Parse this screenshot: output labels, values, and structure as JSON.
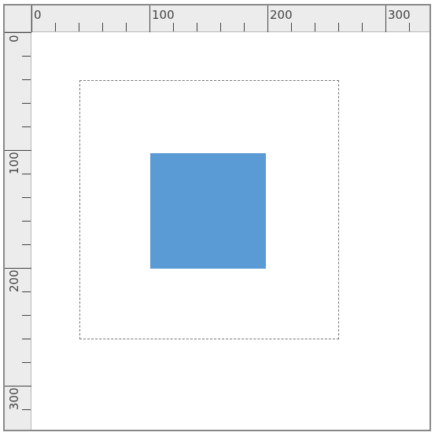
{
  "ruler": {
    "horizontal": {
      "labels": [
        "0",
        "100",
        "200",
        "300"
      ]
    },
    "vertical": {
      "labels": [
        "0",
        "100",
        "200",
        "300"
      ]
    }
  },
  "canvas": {
    "shape": {
      "type": "rectangle",
      "fill": "#5b9bd5"
    },
    "selection": {
      "border_color": "#777777"
    }
  }
}
